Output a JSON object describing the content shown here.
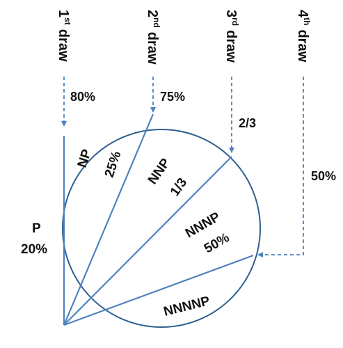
{
  "colors": {
    "line": "#4f81bd",
    "circle_stroke": "#2e5f8f",
    "text": "#111111"
  },
  "draws": [
    {
      "num": "1",
      "suffix": "st",
      "word": "draw",
      "prob": "80%"
    },
    {
      "num": "2",
      "suffix": "nd",
      "word": "draw",
      "prob": "75%"
    },
    {
      "num": "3",
      "suffix": "rd",
      "word": "draw",
      "prob": "2/3"
    },
    {
      "num": "4",
      "suffix": "th",
      "word": "draw",
      "prob": "50%"
    }
  ],
  "regions": [
    {
      "name": "P",
      "prob": "20%"
    },
    {
      "name": "NP",
      "prob": "25%"
    },
    {
      "name": "NNP",
      "prob": "1/3"
    },
    {
      "name": "NNNP",
      "prob": "50%"
    },
    {
      "name": "NNNNP",
      "prob": ""
    }
  ]
}
